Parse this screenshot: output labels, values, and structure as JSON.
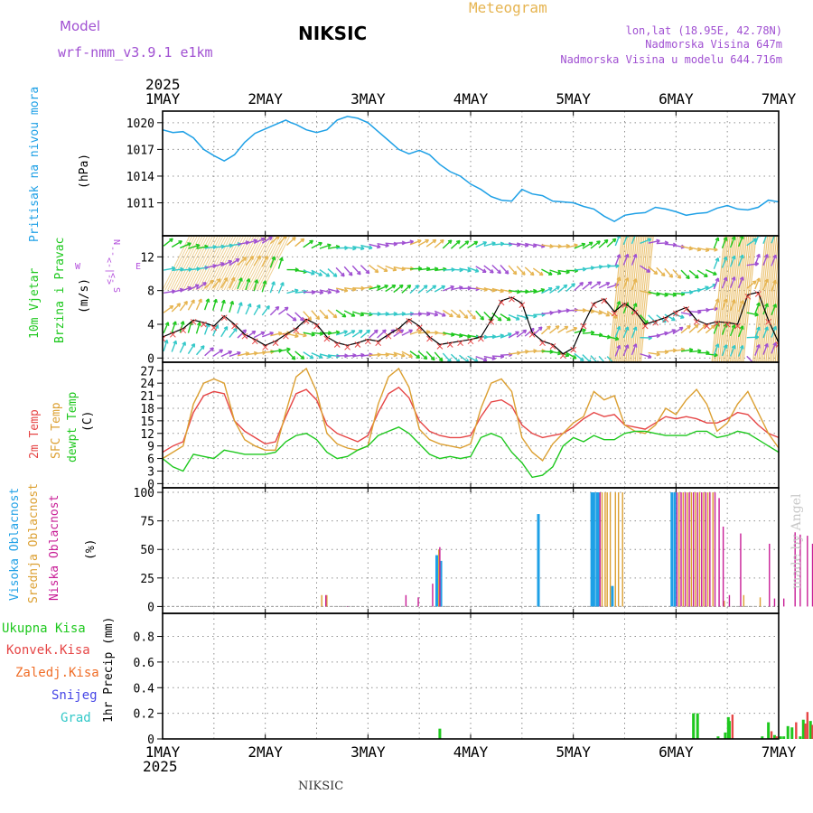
{
  "header": {
    "model_label": "Model",
    "model_name": "wrf-nmm_v3.9.1 e1km",
    "station": "NIKSIC",
    "product": "Meteogram",
    "location": "lon,lat (18.95E, 42.78N)",
    "elevation": "Nadmorska Visina 647m",
    "model_elevation": "Nadmorska Visina u modelu 644.716m"
  },
  "footer": {
    "station": "NIKSIC",
    "credit": "made by Angel"
  },
  "colors": {
    "pressure": "#1ea0e6",
    "wind_label": "#1ec81e",
    "compass": "#b450dc",
    "temp2m": "#e64646",
    "sfc": "#dca032",
    "dewpt": "#1ec81e",
    "high_cloud": "#1ea0e6",
    "mid_cloud": "#dca032",
    "low_cloud": "#c81e96",
    "total_precip": "#1ec81e",
    "conv_precip": "#e64646",
    "frz_precip": "#f06e28",
    "snow": "#4646e6",
    "graupel": "#32c8c8",
    "title_orange": "#e6b450",
    "model_purple": "#a050d2"
  },
  "chart_data": [
    {
      "id": "pressure",
      "type": "line",
      "ylabel": [
        "Pritisak na nivou mora",
        "(hPa)"
      ],
      "yticks": [
        1011,
        1014,
        1017,
        1020
      ],
      "ylim": [
        1007.3,
        1021.3
      ],
      "x_labels": [
        "1MAY",
        "2MAY",
        "3MAY",
        "4MAY",
        "5MAY",
        "6MAY",
        "7MAY"
      ],
      "x_year": "2025",
      "series": [
        {
          "x": [
            0,
            0.1,
            0.2,
            0.3,
            0.4,
            0.5,
            0.6,
            0.7,
            0.8,
            0.9,
            1.0,
            1.1,
            1.2,
            1.25,
            1.3,
            1.4,
            1.5,
            1.6,
            1.7,
            1.8,
            1.9,
            2.0,
            2.1,
            2.2,
            2.3,
            2.4,
            2.5,
            2.6,
            2.7,
            2.8,
            2.9,
            3.0,
            3.1,
            3.2,
            3.3,
            3.4,
            3.5,
            3.6,
            3.7,
            3.8,
            3.9,
            4.0,
            4.1,
            4.2,
            4.3,
            4.4,
            4.5,
            4.6,
            4.7,
            4.8,
            4.9,
            5.0,
            5.1,
            5.2,
            5.3,
            5.4,
            5.5,
            5.6,
            5.7,
            5.8,
            5.9,
            6.0
          ],
          "values": [
            1019.2,
            1018.9,
            1019.0,
            1018.3,
            1017.0,
            1016.3,
            1015.7,
            1016.4,
            1017.8,
            1018.8,
            1019.3,
            1019.8,
            1020.3,
            1020.0,
            1019.8,
            1019.2,
            1018.9,
            1019.2,
            1020.3,
            1020.7,
            1020.5,
            1020.0,
            1019.0,
            1018.0,
            1017.0,
            1016.5,
            1016.9,
            1016.4,
            1015.3,
            1014.5,
            1014.0,
            1013.1,
            1012.5,
            1011.7,
            1011.3,
            1011.2,
            1012.5,
            1012.0,
            1011.8,
            1011.2,
            1011.1,
            1011.0,
            1010.6,
            1010.3,
            1009.5,
            1008.9,
            1009.6,
            1009.8,
            1009.9,
            1010.5,
            1010.3,
            1010.0,
            1009.6,
            1009.8,
            1009.9,
            1010.4,
            1010.7,
            1010.3,
            1010.2,
            1010.5,
            1011.3,
            1011.1
          ]
        }
      ]
    },
    {
      "id": "wind",
      "type": "line",
      "ylabel": [
        "10m Vjetar",
        "Brzina i Pravac",
        "(m/s)"
      ],
      "compass": [
        "N",
        "S",
        "W",
        "E",
        "<-|->"
      ],
      "yticks": [
        0,
        4,
        8,
        12
      ],
      "ylim": [
        -0.5,
        14.5
      ],
      "series": [
        {
          "name": "speed",
          "x": [
            0,
            0.1,
            0.2,
            0.3,
            0.4,
            0.5,
            0.6,
            0.7,
            0.8,
            0.9,
            1.0,
            1.1,
            1.2,
            1.3,
            1.4,
            1.5,
            1.6,
            1.7,
            1.8,
            1.9,
            2.0,
            2.1,
            2.2,
            2.3,
            2.4,
            2.5,
            2.6,
            2.7,
            2.8,
            2.9,
            3.0,
            3.1,
            3.2,
            3.3,
            3.4,
            3.5,
            3.6,
            3.7,
            3.8,
            3.9,
            4.0,
            4.1,
            4.2,
            4.3,
            4.4,
            4.5,
            4.6,
            4.7,
            4.8,
            4.9,
            5.0,
            5.1,
            5.2,
            5.3,
            5.4,
            5.5,
            5.6,
            5.7,
            5.8,
            5.9,
            6.0
          ],
          "values": [
            2.5,
            3.0,
            3.5,
            4.5,
            4.2,
            3.8,
            5.0,
            4.0,
            2.8,
            2.2,
            1.5,
            2.0,
            2.8,
            3.5,
            4.6,
            4.0,
            2.5,
            1.8,
            1.5,
            1.8,
            2.2,
            2.0,
            2.8,
            3.5,
            4.6,
            3.8,
            2.5,
            1.6,
            1.8,
            2.0,
            2.2,
            2.5,
            4.5,
            6.8,
            7.2,
            6.5,
            3.0,
            2.0,
            1.6,
            0.5,
            1.2,
            4.0,
            6.5,
            7.0,
            5.5,
            6.5,
            5.6,
            4.0,
            4.4,
            4.8,
            5.5,
            6.0,
            4.5,
            4.0,
            4.3,
            4.2,
            4.0,
            7.5,
            7.8,
            4.5,
            1.8
          ]
        }
      ],
      "arrow_colors": [
        "#1ec81e",
        "#32c8c8",
        "#a050d2",
        "#e6b450",
        "#c81e96",
        "#e64646"
      ]
    },
    {
      "id": "temperature",
      "type": "line",
      "ylabel": [
        "2m Temp",
        "SFC Temp",
        "dewpt Temp",
        "(C)"
      ],
      "yticks": [
        0,
        3,
        6,
        9,
        12,
        15,
        18,
        21,
        24,
        27
      ],
      "ylim": [
        -1,
        29
      ],
      "x": [
        0,
        0.1,
        0.2,
        0.3,
        0.4,
        0.5,
        0.6,
        0.7,
        0.8,
        0.9,
        1.0,
        1.1,
        1.2,
        1.3,
        1.4,
        1.5,
        1.6,
        1.7,
        1.8,
        1.9,
        2.0,
        2.1,
        2.2,
        2.3,
        2.4,
        2.5,
        2.6,
        2.7,
        2.8,
        2.9,
        3.0,
        3.1,
        3.2,
        3.3,
        3.4,
        3.5,
        3.6,
        3.7,
        3.8,
        3.9,
        4.0,
        4.1,
        4.2,
        4.3,
        4.4,
        4.5,
        4.6,
        4.7,
        4.8,
        4.9,
        5.0,
        5.1,
        5.2,
        5.3,
        5.4,
        5.5,
        5.6,
        5.7,
        5.8,
        5.9,
        6.0
      ],
      "series": [
        {
          "name": "2m Temp",
          "values": [
            7.5,
            9.0,
            10.0,
            17.0,
            21.0,
            22.0,
            21.5,
            15.0,
            12.5,
            11.0,
            9.5,
            10.0,
            16.0,
            21.5,
            22.5,
            20.0,
            14.0,
            12.0,
            11.0,
            10.0,
            11.5,
            17.0,
            21.5,
            23.0,
            20.5,
            15.0,
            12.5,
            11.5,
            11.0,
            11.0,
            11.5,
            16.0,
            19.5,
            20.0,
            18.5,
            14.0,
            12.0,
            11.0,
            11.5,
            12.0,
            13.5,
            15.5,
            17.0,
            16.0,
            16.5,
            14.0,
            13.5,
            13.0,
            14.5,
            16.0,
            15.5,
            16.0,
            15.5,
            14.5,
            14.5,
            15.5,
            17.0,
            16.5,
            14.0,
            12.0,
            11.0
          ]
        },
        {
          "name": "SFC Temp",
          "values": [
            6.0,
            7.5,
            9.0,
            19.0,
            24.0,
            25.0,
            24.0,
            15.0,
            10.5,
            9.0,
            8.0,
            8.0,
            17.0,
            25.5,
            27.5,
            22.0,
            12.0,
            9.5,
            8.5,
            8.0,
            9.0,
            19.0,
            25.5,
            27.5,
            23.0,
            13.0,
            10.5,
            9.5,
            9.0,
            8.5,
            9.5,
            18.0,
            24.0,
            25.0,
            22.0,
            11.0,
            7.5,
            5.5,
            9.5,
            12.0,
            14.5,
            16.0,
            22.0,
            20.0,
            21.0,
            14.0,
            12.5,
            12.0,
            14.0,
            18.0,
            16.5,
            20.0,
            22.5,
            19.0,
            12.5,
            14.5,
            19.0,
            22.0,
            17.0,
            12.0,
            8.5
          ]
        },
        {
          "name": "dewpt Temp",
          "values": [
            6.0,
            4.0,
            3.0,
            7.0,
            6.5,
            6.0,
            8.0,
            7.5,
            7.0,
            7.0,
            7.0,
            7.5,
            10.0,
            11.5,
            12.0,
            10.5,
            7.5,
            6.0,
            6.5,
            8.0,
            9.0,
            11.5,
            12.5,
            13.5,
            12.0,
            9.5,
            7.0,
            6.0,
            6.5,
            6.0,
            6.5,
            11.0,
            12.0,
            11.0,
            7.5,
            5.0,
            1.5,
            2.0,
            4.0,
            9.0,
            11.0,
            10.0,
            11.5,
            10.5,
            10.5,
            12.0,
            12.5,
            12.5,
            12.0,
            11.5,
            11.5,
            11.5,
            12.5,
            12.5,
            11.0,
            11.5,
            12.5,
            12.0,
            10.5,
            9.0,
            7.5
          ]
        }
      ]
    },
    {
      "id": "cloud",
      "type": "bar",
      "ylabel": [
        "Visoka Oblacnost",
        "Srednja Oblacnost",
        "Niska Oblacnost",
        "(%)"
      ],
      "yticks": [
        0,
        25,
        50,
        75,
        100
      ],
      "ylim": [
        -6,
        104
      ],
      "series": [
        {
          "name": "Visoka Oblacnost",
          "bars": [
            [
              2.67,
              45
            ],
            [
              2.71,
              40
            ],
            [
              3.66,
              81
            ],
            [
              4.18,
              100
            ],
            [
              4.2,
              100
            ],
            [
              4.23,
              100
            ],
            [
              4.24,
              100
            ],
            [
              4.38,
              18
            ],
            [
              4.96,
              100
            ],
            [
              4.99,
              100
            ],
            [
              6.51,
              10
            ],
            [
              6.56,
              16
            ]
          ]
        },
        {
          "name": "Srednja Oblacnost",
          "bars": [
            [
              1.55,
              10
            ],
            [
              1.6,
              10
            ],
            [
              2.69,
              50
            ],
            [
              4.28,
              100
            ],
            [
              4.31,
              100
            ],
            [
              4.33,
              100
            ],
            [
              4.36,
              100
            ],
            [
              4.41,
              100
            ],
            [
              4.44,
              100
            ],
            [
              4.48,
              100
            ],
            [
              5.03,
              100
            ],
            [
              5.07,
              100
            ],
            [
              5.11,
              100
            ],
            [
              5.15,
              100
            ],
            [
              5.19,
              100
            ],
            [
              5.23,
              100
            ],
            [
              5.27,
              100
            ],
            [
              5.31,
              100
            ],
            [
              5.36,
              100
            ],
            [
              5.47,
              5
            ],
            [
              5.66,
              10
            ],
            [
              5.82,
              8
            ],
            [
              6.63,
              59
            ],
            [
              6.68,
              10
            ]
          ]
        },
        {
          "name": "Niska Oblacnost",
          "bars": [
            [
              1.59,
              10
            ],
            [
              1.8,
              0
            ],
            [
              2.37,
              10
            ],
            [
              2.49,
              8
            ],
            [
              2.63,
              20
            ],
            [
              2.7,
              52
            ],
            [
              4.26,
              100
            ],
            [
              5.01,
              100
            ],
            [
              5.05,
              100
            ],
            [
              5.09,
              100
            ],
            [
              5.13,
              100
            ],
            [
              5.17,
              100
            ],
            [
              5.21,
              100
            ],
            [
              5.25,
              100
            ],
            [
              5.29,
              100
            ],
            [
              5.33,
              100
            ],
            [
              5.38,
              100
            ],
            [
              5.42,
              95
            ],
            [
              5.46,
              70
            ],
            [
              5.52,
              10
            ],
            [
              5.63,
              64
            ],
            [
              5.91,
              55
            ],
            [
              5.96,
              7
            ],
            [
              6.05,
              7
            ],
            [
              6.16,
              65
            ],
            [
              6.21,
              63
            ],
            [
              6.28,
              62
            ],
            [
              6.33,
              55
            ],
            [
              6.45,
              62
            ],
            [
              6.48,
              45
            ]
          ]
        }
      ]
    },
    {
      "id": "precip",
      "type": "bar",
      "ylabel": [
        "1hr Precip (mm)"
      ],
      "legend": [
        "Ukupna Kisa",
        "Konvek.Kisa",
        "Zaledj.Kisa",
        "Snijeg",
        "Grad"
      ],
      "yticks": [
        0,
        0.2,
        0.4,
        0.6,
        0.8
      ],
      "ylim": [
        0,
        0.98
      ],
      "series": [
        {
          "name": "Ukupna Kisa",
          "bars": [
            [
              2.7,
              0.08
            ],
            [
              5.17,
              0.2
            ],
            [
              5.21,
              0.2
            ],
            [
              5.41,
              0.02
            ],
            [
              5.48,
              0.05
            ],
            [
              5.51,
              0.17
            ],
            [
              5.52,
              0.14
            ],
            [
              5.84,
              0.02
            ],
            [
              5.9,
              0.13
            ],
            [
              5.96,
              0.03
            ],
            [
              6.02,
              0.02
            ],
            [
              6.05,
              0.02
            ],
            [
              6.09,
              0.1
            ],
            [
              6.13,
              0.09
            ],
            [
              6.21,
              0.02
            ],
            [
              6.24,
              0.15
            ],
            [
              6.31,
              0.14
            ],
            [
              6.36,
              0.14
            ],
            [
              6.47,
              0.02
            ],
            [
              6.6,
              0.03
            ],
            [
              6.66,
              0.21
            ],
            [
              6.7,
              0.03
            ]
          ]
        },
        {
          "name": "Konvek.Kisa",
          "bars": [
            [
              5.55,
              0.19
            ],
            [
              5.93,
              0.06
            ],
            [
              5.98,
              0.02
            ],
            [
              6.17,
              0.13
            ],
            [
              6.26,
              0.12
            ],
            [
              6.28,
              0.21
            ],
            [
              6.33,
              0.11
            ],
            [
              6.4,
              0.13
            ],
            [
              6.44,
              0.12
            ],
            [
              6.68,
              0.21
            ]
          ]
        }
      ]
    }
  ]
}
